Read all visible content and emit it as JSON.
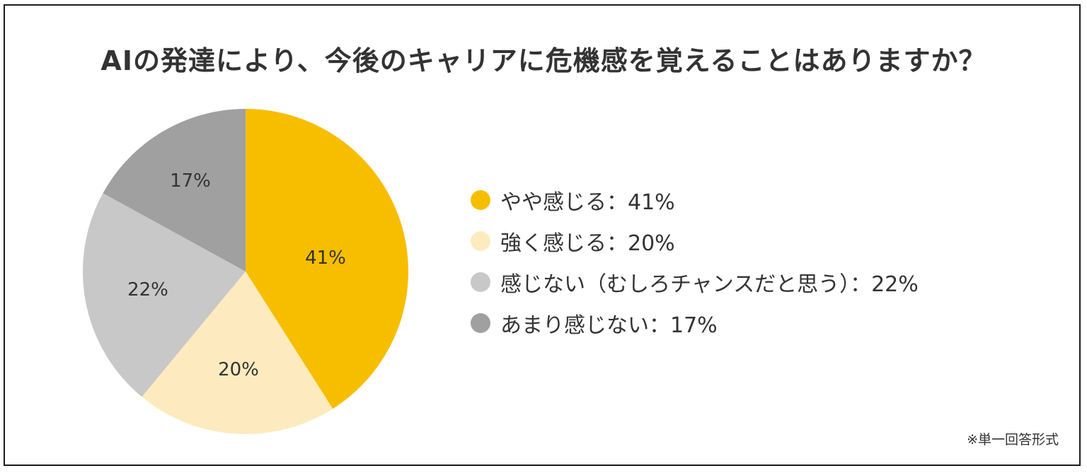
{
  "title": "AIの発達により、今後のキャリアに危機感を覚えることはありますか？",
  "note": "※単一回答形式",
  "colors": {
    "slightly": "#f7be00",
    "strongly": "#fdebbf",
    "not_chance": "#c8c8c8",
    "not_much": "#9fa09f"
  },
  "legend": [
    {
      "label": "やや感じる：41%",
      "color": "#f7be00"
    },
    {
      "label": "強く感じる：20%",
      "color": "#fdebbf"
    },
    {
      "label": "感じない（むしろチャンスだと思う）：22%",
      "color": "#c8c8c8"
    },
    {
      "label": "あまり感じない：17%",
      "color": "#9fa09f"
    }
  ],
  "slice_labels": [
    "41%",
    "20%",
    "22%",
    "17%"
  ],
  "chart_data": {
    "type": "pie",
    "title": "AIの発達により、今後のキャリアに危機感を覚えることはありますか？",
    "categories": [
      "やや感じる",
      "強く感じる",
      "感じない（むしろチャンスだと思う）",
      "あまり感じない"
    ],
    "values": [
      41,
      20,
      22,
      17
    ],
    "unit": "%",
    "colors": [
      "#f7be00",
      "#fdebbf",
      "#c8c8c8",
      "#9fa09f"
    ],
    "start_angle": "12 o'clock",
    "direction": "clockwise",
    "legend_position": "right",
    "annotation": "※単一回答形式"
  }
}
